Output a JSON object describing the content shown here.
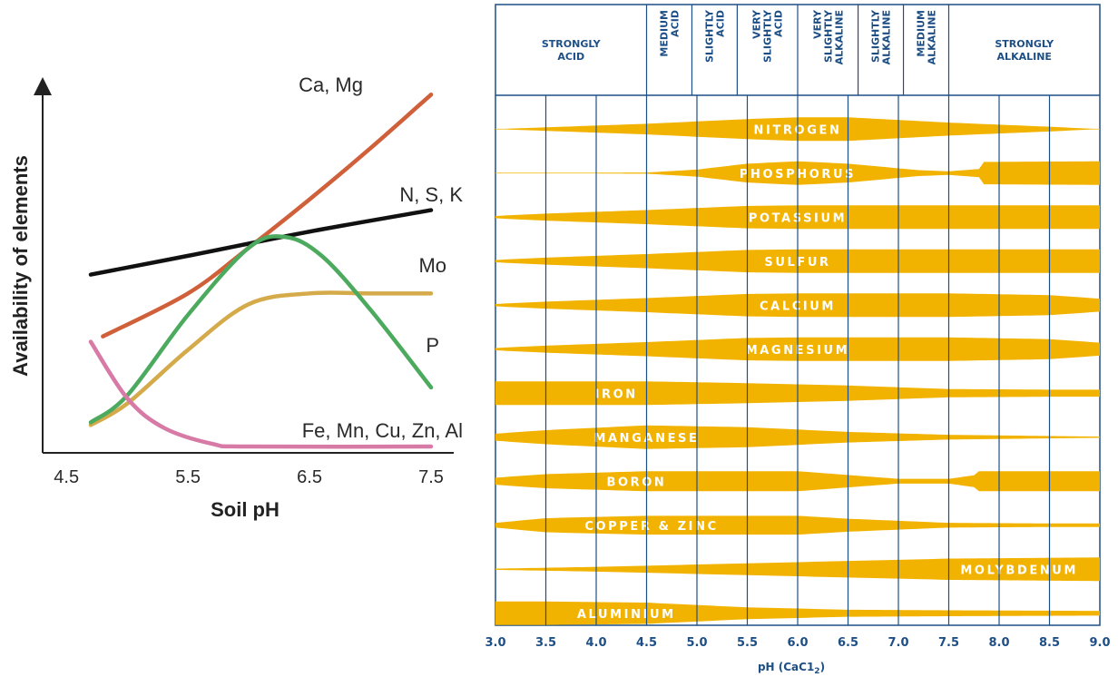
{
  "chart_data": [
    {
      "type": "line",
      "title": "",
      "xlabel": "Soil pH",
      "ylabel": "Availability of elements",
      "xlim": [
        4.5,
        7.5
      ],
      "x_ticks": [
        "4.5",
        "5.5",
        "6.5",
        "7.5"
      ],
      "grid": false,
      "series": [
        {
          "name": "Ca, Mg",
          "color": "#d0603a",
          "points": [
            [
              4.8,
              0.42
            ],
            [
              5.5,
              0.58
            ],
            [
              6.0,
              0.75
            ],
            [
              6.5,
              0.93
            ],
            [
              7.0,
              1.12
            ],
            [
              7.5,
              1.32
            ]
          ]
        },
        {
          "name": "N, S, K",
          "color": "#111111",
          "points": [
            [
              4.7,
              0.65
            ],
            [
              5.5,
              0.72
            ],
            [
              6.5,
              0.81
            ],
            [
              7.5,
              0.89
            ]
          ]
        },
        {
          "name": "Mo",
          "color": "#d4aa4a",
          "points": [
            [
              4.7,
              0.09
            ],
            [
              5.0,
              0.17
            ],
            [
              5.5,
              0.37
            ],
            [
              6.0,
              0.54
            ],
            [
              6.5,
              0.58
            ],
            [
              7.0,
              0.58
            ],
            [
              7.5,
              0.58
            ]
          ]
        },
        {
          "name": "P",
          "color": "#4caa5e",
          "points": [
            [
              4.7,
              0.1
            ],
            [
              5.0,
              0.2
            ],
            [
              5.5,
              0.5
            ],
            [
              6.0,
              0.75
            ],
            [
              6.3,
              0.79
            ],
            [
              6.6,
              0.72
            ],
            [
              7.0,
              0.52
            ],
            [
              7.5,
              0.23
            ]
          ]
        },
        {
          "name": "Fe, Mn, Cu, Zn, Al",
          "color": "#d77aa6",
          "points": [
            [
              4.7,
              0.4
            ],
            [
              5.0,
              0.19
            ],
            [
              5.3,
              0.08
            ],
            [
              5.7,
              0.02
            ],
            [
              6.0,
              0.01
            ],
            [
              7.5,
              0.01
            ]
          ]
        }
      ]
    },
    {
      "type": "area",
      "title": "",
      "xlabel": "pH (CaC1₂)",
      "xlabel_main": "pH (CaC1",
      "xlabel_sub": "2",
      "xlabel_end": ")",
      "xlim": [
        3.0,
        9.0
      ],
      "x_ticks": [
        "3.0",
        "3.5",
        "4.0",
        "4.5",
        "5.0",
        "5.5",
        "6.0",
        "6.5",
        "7.0",
        "7.5",
        "8.0",
        "8.5",
        "9.0"
      ],
      "accent_color": "#f2b300",
      "grid_color": "#1d4f86",
      "categories": [
        {
          "lines": [
            "STRONGLY",
            "ACID"
          ],
          "from": 3.0,
          "to": 4.5
        },
        {
          "lines": [
            "MEDIUM",
            "ACID"
          ],
          "from": 4.5,
          "to": 4.95
        },
        {
          "lines": [
            "SLIGHTLY",
            "ACID"
          ],
          "from": 4.95,
          "to": 5.4
        },
        {
          "lines": [
            "VERY",
            "SLIGHTLY",
            "ACID"
          ],
          "from": 5.4,
          "to": 6.0
        },
        {
          "lines": [
            "VERY",
            "SLIGHTLY",
            "ALKALINE"
          ],
          "from": 6.0,
          "to": 6.6
        },
        {
          "lines": [
            "SLIGHTLY",
            "ALKALINE"
          ],
          "from": 6.6,
          "to": 7.05
        },
        {
          "lines": [
            "MEDIUM",
            "ALKALINE"
          ],
          "from": 7.05,
          "to": 7.5
        },
        {
          "lines": [
            "STRONGLY",
            "ALKALINE"
          ],
          "from": 7.5,
          "to": 9.0
        }
      ],
      "bands": [
        {
          "name": "NITROGEN",
          "label_ph": 6.0,
          "profile": [
            [
              3.0,
              0.0
            ],
            [
              3.5,
              0.15
            ],
            [
              4.5,
              0.45
            ],
            [
              5.5,
              0.85
            ],
            [
              6.0,
              1.0
            ],
            [
              6.5,
              1.0
            ],
            [
              7.5,
              0.55
            ],
            [
              8.5,
              0.2
            ],
            [
              9.0,
              0.0
            ]
          ]
        },
        {
          "name": "PHOSPHORUS",
          "label_ph": 6.0,
          "profile": [
            [
              3.0,
              0.0
            ],
            [
              4.5,
              0.05
            ],
            [
              5.0,
              0.3
            ],
            [
              5.5,
              0.8
            ],
            [
              6.0,
              1.0
            ],
            [
              6.5,
              0.8
            ],
            [
              7.2,
              0.25
            ],
            [
              7.5,
              0.15
            ],
            [
              7.8,
              0.35
            ],
            [
              7.85,
              0.95
            ],
            [
              9.0,
              1.0
            ]
          ]
        },
        {
          "name": "POTASSIUM",
          "label_ph": 6.0,
          "profile": [
            [
              3.0,
              0.1
            ],
            [
              3.5,
              0.3
            ],
            [
              4.5,
              0.6
            ],
            [
              5.5,
              0.95
            ],
            [
              6.0,
              1.0
            ],
            [
              9.0,
              1.0
            ]
          ]
        },
        {
          "name": "SULFUR",
          "label_ph": 6.0,
          "profile": [
            [
              3.0,
              0.1
            ],
            [
              3.5,
              0.3
            ],
            [
              4.5,
              0.6
            ],
            [
              5.5,
              0.95
            ],
            [
              6.0,
              1.0
            ],
            [
              9.0,
              1.0
            ]
          ]
        },
        {
          "name": "CALCIUM",
          "label_ph": 6.0,
          "profile": [
            [
              3.0,
              0.1
            ],
            [
              3.5,
              0.3
            ],
            [
              4.5,
              0.6
            ],
            [
              5.5,
              0.95
            ],
            [
              6.0,
              1.0
            ],
            [
              7.5,
              1.0
            ],
            [
              8.5,
              0.85
            ],
            [
              9.0,
              0.55
            ]
          ]
        },
        {
          "name": "MAGNESIUM",
          "label_ph": 6.0,
          "profile": [
            [
              3.0,
              0.1
            ],
            [
              3.5,
              0.3
            ],
            [
              4.5,
              0.6
            ],
            [
              5.5,
              0.95
            ],
            [
              6.0,
              1.0
            ],
            [
              7.5,
              1.0
            ],
            [
              8.5,
              0.85
            ],
            [
              9.0,
              0.55
            ]
          ]
        },
        {
          "name": "IRON",
          "label_ph": 4.2,
          "profile": [
            [
              3.0,
              1.0
            ],
            [
              4.5,
              1.0
            ],
            [
              5.5,
              0.85
            ],
            [
              6.5,
              0.65
            ],
            [
              7.5,
              0.35
            ],
            [
              8.5,
              0.3
            ],
            [
              9.0,
              0.3
            ]
          ]
        },
        {
          "name": "MANGANESE",
          "label_ph": 4.5,
          "profile": [
            [
              3.0,
              0.3
            ],
            [
              3.5,
              0.6
            ],
            [
              4.5,
              1.0
            ],
            [
              5.5,
              0.85
            ],
            [
              6.5,
              0.45
            ],
            [
              7.5,
              0.2
            ],
            [
              8.5,
              0.1
            ],
            [
              9.0,
              0.05
            ]
          ]
        },
        {
          "name": "BORON",
          "label_ph": 4.4,
          "profile": [
            [
              3.0,
              0.3
            ],
            [
              3.5,
              0.6
            ],
            [
              4.5,
              0.85
            ],
            [
              5.5,
              0.85
            ],
            [
              6.0,
              0.85
            ],
            [
              7.0,
              0.2
            ],
            [
              7.5,
              0.2
            ],
            [
              7.75,
              0.5
            ],
            [
              7.8,
              0.85
            ],
            [
              9.0,
              0.85
            ]
          ]
        },
        {
          "name": "COPPER & ZINC",
          "label_ph": 4.55,
          "profile": [
            [
              3.0,
              0.2
            ],
            [
              3.5,
              0.6
            ],
            [
              4.5,
              0.8
            ],
            [
              5.5,
              0.8
            ],
            [
              6.0,
              0.8
            ],
            [
              6.5,
              0.55
            ],
            [
              7.5,
              0.2
            ],
            [
              8.5,
              0.15
            ],
            [
              9.0,
              0.15
            ]
          ]
        },
        {
          "name": "MOLYBDENUM",
          "label_ph": 8.2,
          "profile": [
            [
              3.0,
              0.05
            ],
            [
              4.0,
              0.2
            ],
            [
              5.0,
              0.4
            ],
            [
              6.0,
              0.6
            ],
            [
              7.0,
              0.8
            ],
            [
              7.5,
              0.9
            ],
            [
              9.0,
              1.0
            ]
          ]
        },
        {
          "name": "ALUMINIUM",
          "label_ph": 4.3,
          "profile": [
            [
              3.0,
              1.0
            ],
            [
              3.5,
              1.0
            ],
            [
              4.5,
              0.9
            ],
            [
              5.5,
              0.5
            ],
            [
              6.5,
              0.3
            ],
            [
              7.5,
              0.25
            ],
            [
              9.0,
              0.2
            ]
          ]
        }
      ]
    }
  ]
}
